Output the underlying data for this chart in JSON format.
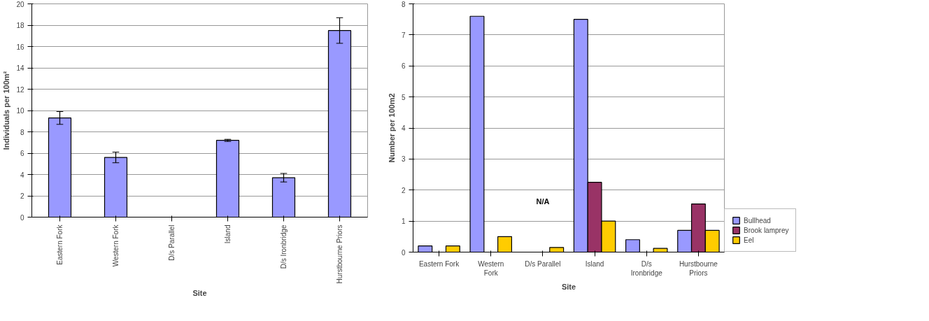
{
  "chart_data": [
    {
      "type": "bar",
      "xlabel": "Site",
      "ylabel": "Individuals per 100m²",
      "categories": [
        "Eastern Fork",
        "Western Fork",
        "D/s Parallel",
        "Island",
        "D/s Ironbridge",
        "Hurstbourne Priors"
      ],
      "series": [
        {
          "color": "#9999ff",
          "values": [
            9.3,
            5.6,
            null,
            7.2,
            3.7,
            17.5
          ],
          "errors": [
            0.6,
            0.5,
            null,
            0.1,
            0.4,
            1.2
          ]
        }
      ],
      "ylim": [
        0,
        20
      ],
      "yticks": [
        0,
        2,
        4,
        6,
        8,
        10,
        12,
        14,
        16,
        18,
        20
      ],
      "grid": "y"
    },
    {
      "type": "bar",
      "xlabel": "Site",
      "ylabel": "Number per 100m2",
      "categories": [
        "Eastern Fork",
        "Western\nFork",
        "D/s Parallel",
        "Island",
        "D/s\nIronbridge",
        "Hurstbourne\nPriors"
      ],
      "series": [
        {
          "name": "Bullhead",
          "color": "#9999ff",
          "values": [
            0.2,
            7.6,
            null,
            7.5,
            0.4,
            0.7
          ]
        },
        {
          "name": "Brook lamprey",
          "color": "#993366",
          "values": [
            null,
            null,
            null,
            2.25,
            null,
            1.55
          ]
        },
        {
          "name": "Eel",
          "color": "#ffcc00",
          "values": [
            0.2,
            0.5,
            0.15,
            1.0,
            0.12,
            0.7
          ]
        }
      ],
      "annotations": [
        "N/A"
      ],
      "ylim": [
        0,
        8
      ],
      "yticks": [
        0,
        1,
        2,
        3,
        4,
        5,
        6,
        7,
        8
      ],
      "grid": "y",
      "legend": "right"
    }
  ]
}
